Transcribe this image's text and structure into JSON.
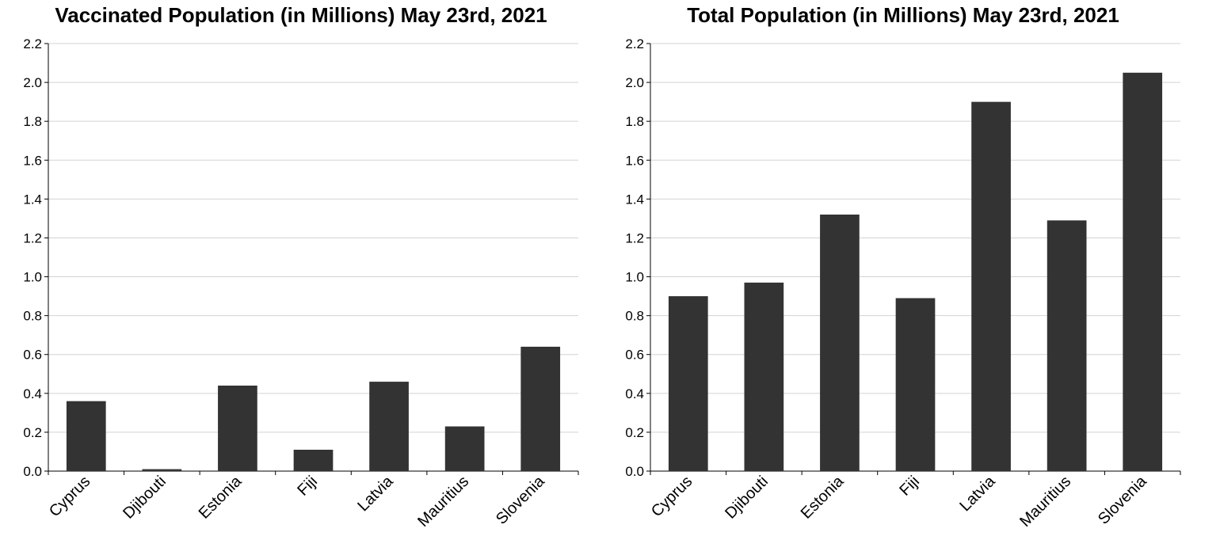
{
  "chart_data": [
    {
      "type": "bar",
      "title": "Vaccinated Population (in Millions) May 23rd, 2021",
      "categories": [
        "Cyprus",
        "Djibouti",
        "Estonia",
        "Fiji",
        "Latvia",
        "Mauritius",
        "Slovenia"
      ],
      "values": [
        0.36,
        0.01,
        0.44,
        0.11,
        0.46,
        0.23,
        0.64
      ],
      "ylim": [
        0,
        2.2
      ],
      "yticks": [
        "0.0",
        "0.2",
        "0.4",
        "0.6",
        "0.8",
        "1.0",
        "1.2",
        "1.4",
        "1.6",
        "1.8",
        "2.0",
        "2.2"
      ],
      "grid": true,
      "bar_color": "#333333",
      "xlabel": "",
      "ylabel": ""
    },
    {
      "type": "bar",
      "title": "Total Population (in Millions) May 23rd, 2021",
      "categories": [
        "Cyprus",
        "Djibouti",
        "Estonia",
        "Fiji",
        "Latvia",
        "Mauritius",
        "Slovenia"
      ],
      "values": [
        0.9,
        0.97,
        1.32,
        0.89,
        1.9,
        1.29,
        2.05
      ],
      "ylim": [
        0,
        2.2
      ],
      "yticks": [
        "0.0",
        "0.2",
        "0.4",
        "0.6",
        "0.8",
        "1.0",
        "1.2",
        "1.4",
        "1.6",
        "1.8",
        "2.0",
        "2.2"
      ],
      "grid": true,
      "bar_color": "#333333",
      "xlabel": "",
      "ylabel": ""
    }
  ]
}
